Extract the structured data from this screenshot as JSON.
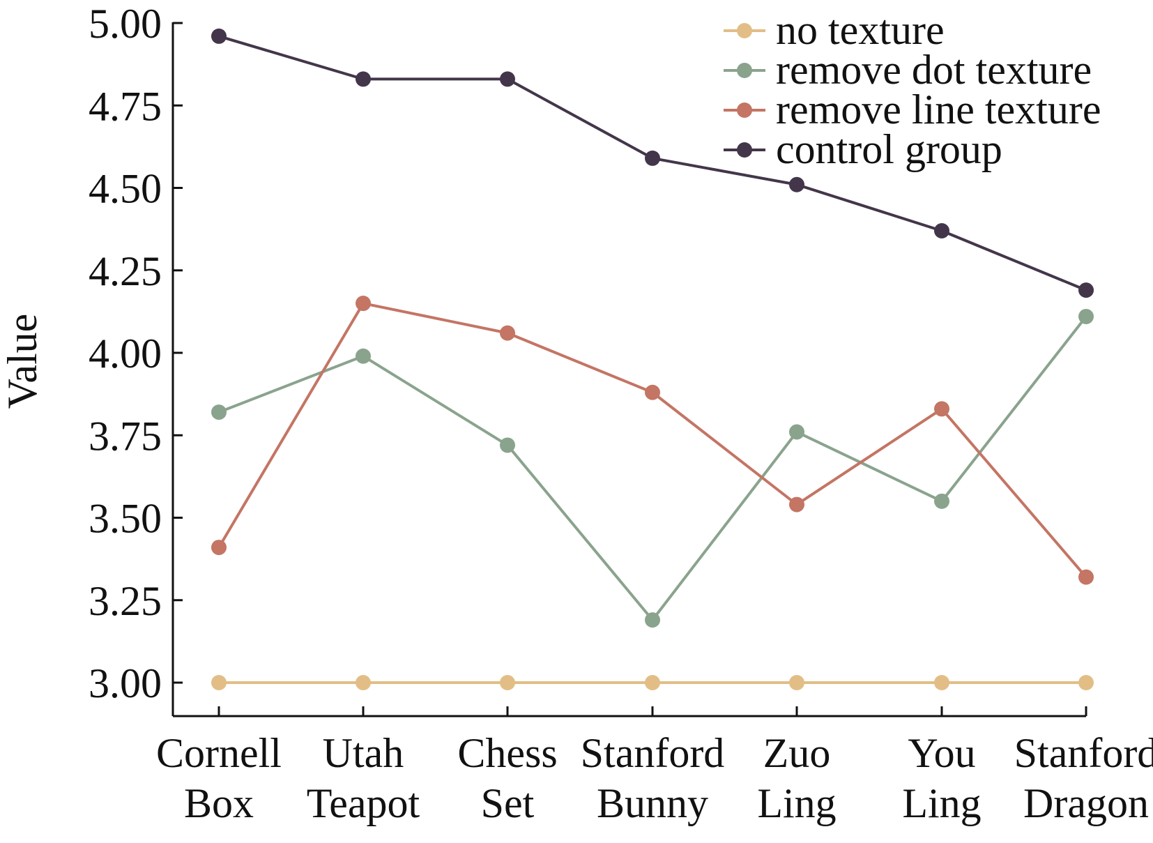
{
  "chart_data": {
    "type": "line",
    "ylabel": "Value",
    "xlabel": "",
    "ylim": [
      2.9,
      5.0
    ],
    "yticks": [
      "5.00",
      "4.75",
      "4.50",
      "4.25",
      "4.00",
      "3.75",
      "3.50",
      "3.25",
      "3.00"
    ],
    "categories": [
      [
        "Cornell",
        "Box"
      ],
      [
        "Utah",
        "Teapot"
      ],
      [
        "Chess",
        "Set"
      ],
      [
        "Stanford",
        "Bunny"
      ],
      [
        "Zuo",
        "Ling"
      ],
      [
        "You",
        "Ling"
      ],
      [
        "Stanford",
        "Dragon"
      ]
    ],
    "legend_position": "top-right",
    "grid": false,
    "series": [
      {
        "name": "no texture",
        "color": "#E2BE86",
        "values": [
          3.0,
          3.0,
          3.0,
          3.0,
          3.0,
          3.0,
          3.0
        ]
      },
      {
        "name": "remove dot texture",
        "color": "#8AA38D",
        "values": [
          3.82,
          3.99,
          3.72,
          3.19,
          3.76,
          3.55,
          4.11
        ]
      },
      {
        "name": "remove line texture",
        "color": "#C47564",
        "values": [
          3.41,
          4.15,
          4.06,
          3.88,
          3.54,
          3.83,
          3.32
        ]
      },
      {
        "name": "control group",
        "color": "#43364A",
        "values": [
          4.96,
          4.83,
          4.83,
          4.59,
          4.51,
          4.37,
          4.19
        ]
      }
    ]
  }
}
